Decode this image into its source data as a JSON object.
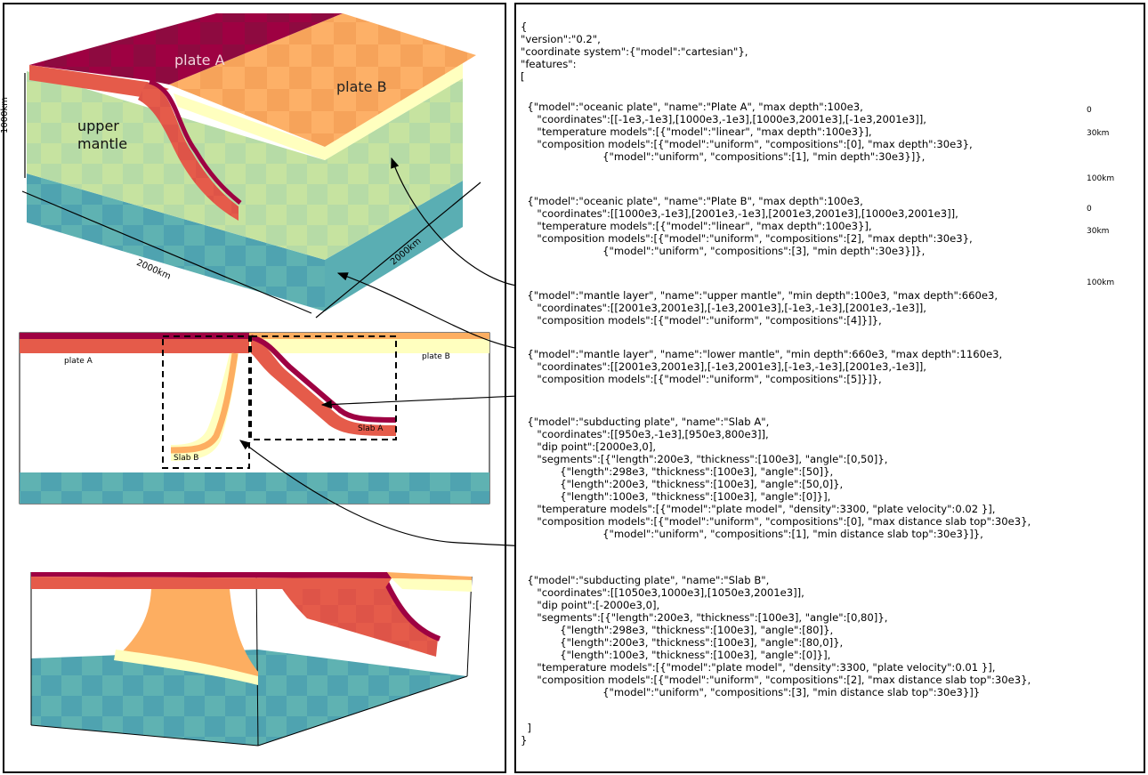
{
  "colors": {
    "plate_a": "#9e0142",
    "plate_a_lower": "#e55b4a",
    "plate_b": "#fdae61",
    "plate_b_lower": "#ffffbf",
    "upper_mantle": "#c8e4a0",
    "lower_mantle": "#4fa3b0",
    "arrows": "#000000"
  },
  "block3d": {
    "plate_a": "plate A",
    "plate_b": "plate B",
    "upper_mantle_line1": "upper",
    "upper_mantle_line2": "mantle",
    "dim_height": "1000km",
    "dim_front": "2000km",
    "dim_side": "2000km"
  },
  "cross_section": {
    "plate_a": "plate A",
    "plate_b": "plate B",
    "slab_a": "Slab A",
    "slab_b": "Slab B"
  },
  "depth_a": {
    "top": "0",
    "mid": "30km",
    "bottom": "100km"
  },
  "depth_b": {
    "top": "0",
    "mid": "30km",
    "bottom": "100km"
  },
  "json_lines": [
    "{",
    "\"version\":\"0.2\",",
    "\"coordinate system\":{\"model\":\"cartesian\"},",
    "\"features\":",
    "[",
    "  {\"model\":\"oceanic plate\", \"name\":\"Plate A\", \"max depth\":100e3,",
    "     \"coordinates\":[[-1e3,-1e3],[1000e3,-1e3],[1000e3,2001e3],[-1e3,2001e3]],",
    "     \"temperature models\":[{\"model\":\"linear\", \"max depth\":100e3}],",
    "     \"composition models\":[{\"model\":\"uniform\", \"compositions\":[0], \"max depth\":30e3},",
    "                         {\"model\":\"uniform\", \"compositions\":[1], \"min depth\":30e3}]},",
    "  {\"model\":\"oceanic plate\", \"name\":\"Plate B\", \"max depth\":100e3,",
    "     \"coordinates\":[[1000e3,-1e3],[2001e3,-1e3],[2001e3,2001e3],[1000e3,2001e3]],",
    "     \"temperature models\":[{\"model\":\"linear\", \"max depth\":100e3}],",
    "     \"composition models\":[{\"model\":\"uniform\", \"compositions\":[2], \"max depth\":30e3},",
    "                         {\"model\":\"uniform\", \"compositions\":[3], \"min depth\":30e3}]},",
    "  {\"model\":\"mantle layer\", \"name\":\"upper mantle\", \"min depth\":100e3, \"max depth\":660e3,",
    "     \"coordinates\":[[2001e3,2001e3],[-1e3,2001e3],[-1e3,-1e3],[2001e3,-1e3]],",
    "     \"composition models\":[{\"model\":\"uniform\", \"compositions\":[4]}]},",
    "  {\"model\":\"mantle layer\", \"name\":\"lower mantle\", \"min depth\":660e3, \"max depth\":1160e3,",
    "     \"coordinates\":[[2001e3,2001e3],[-1e3,2001e3],[-1e3,-1e3],[2001e3,-1e3]],",
    "     \"composition models\":[{\"model\":\"uniform\", \"compositions\":[5]}]},",
    "  {\"model\":\"subducting plate\", \"name\":\"Slab A\",",
    "     \"coordinates\":[[950e3,-1e3],[950e3,800e3]],",
    "     \"dip point\":[2000e3,0],",
    "     \"segments\":[{\"length\":200e3, \"thickness\":[100e3], \"angle\":[0,50]},",
    "            {\"length\":298e3, \"thickness\":[100e3], \"angle\":[50]},",
    "            {\"length\":200e3, \"thickness\":[100e3], \"angle\":[50,0]},",
    "            {\"length\":100e3, \"thickness\":[100e3], \"angle\":[0]}],",
    "     \"temperature models\":[{\"model\":\"plate model\", \"density\":3300, \"plate velocity\":0.02 }],",
    "     \"composition models\":[{\"model\":\"uniform\", \"compositions\":[0], \"max distance slab top\":30e3},",
    "                         {\"model\":\"uniform\", \"compositions\":[1], \"min distance slab top\":30e3}]},",
    "  {\"model\":\"subducting plate\", \"name\":\"Slab B\",",
    "     \"coordinates\":[[1050e3,1000e3],[1050e3,2001e3]],",
    "     \"dip point\":[-2000e3,0],",
    "     \"segments\":[{\"length\":200e3, \"thickness\":[100e3], \"angle\":[0,80]},",
    "            {\"length\":298e3, \"thickness\":[100e3], \"angle\":[80]},",
    "            {\"length\":200e3, \"thickness\":[100e3], \"angle\":[80,0]},",
    "            {\"length\":100e3, \"thickness\":[100e3], \"angle\":[0]}],",
    "     \"temperature models\":[{\"model\":\"plate model\", \"density\":3300, \"plate velocity\":0.01 }],",
    "     \"composition models\":[{\"model\":\"uniform\", \"compositions\":[2], \"max distance slab top\":30e3},",
    "                         {\"model\":\"uniform\", \"compositions\":[3], \"min distance slab top\":30e3}]}",
    "",
    "  ]",
    "}"
  ]
}
